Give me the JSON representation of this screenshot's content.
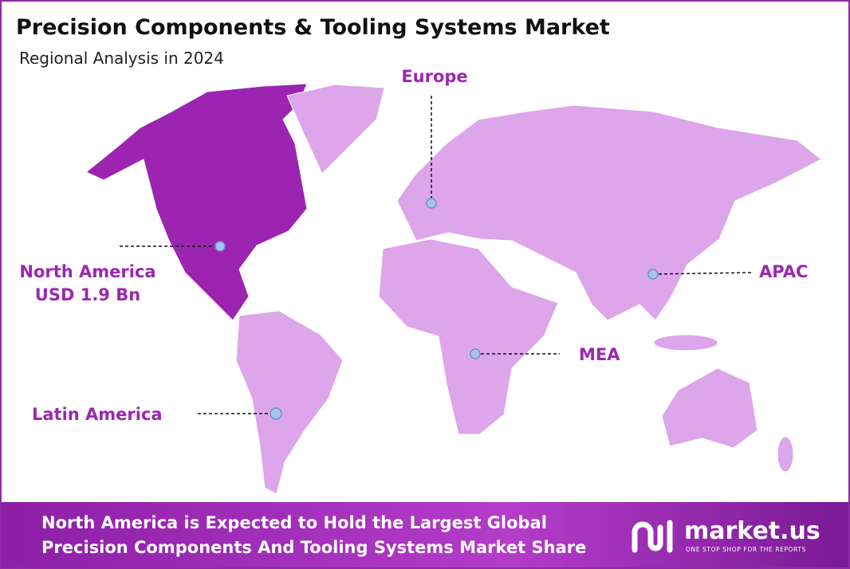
{
  "header": {
    "title": "Precision Components & Tooling Systems Market",
    "subtitle": "Regional Analysis in 2024"
  },
  "regions": [
    {
      "name": "North America",
      "value": "USD 1.9 Bn"
    },
    {
      "name": "Europe"
    },
    {
      "name": "APAC"
    },
    {
      "name": "MEA"
    },
    {
      "name": "Latin America"
    }
  ],
  "footer": {
    "lines": [
      "North America is Expected to Hold the Largest Global",
      "Precision Components And Tooling Systems Market Share"
    ]
  },
  "logo": {
    "name": "market.us",
    "tagline": "ONE STOP SHOP FOR THE REPORTS"
  }
}
